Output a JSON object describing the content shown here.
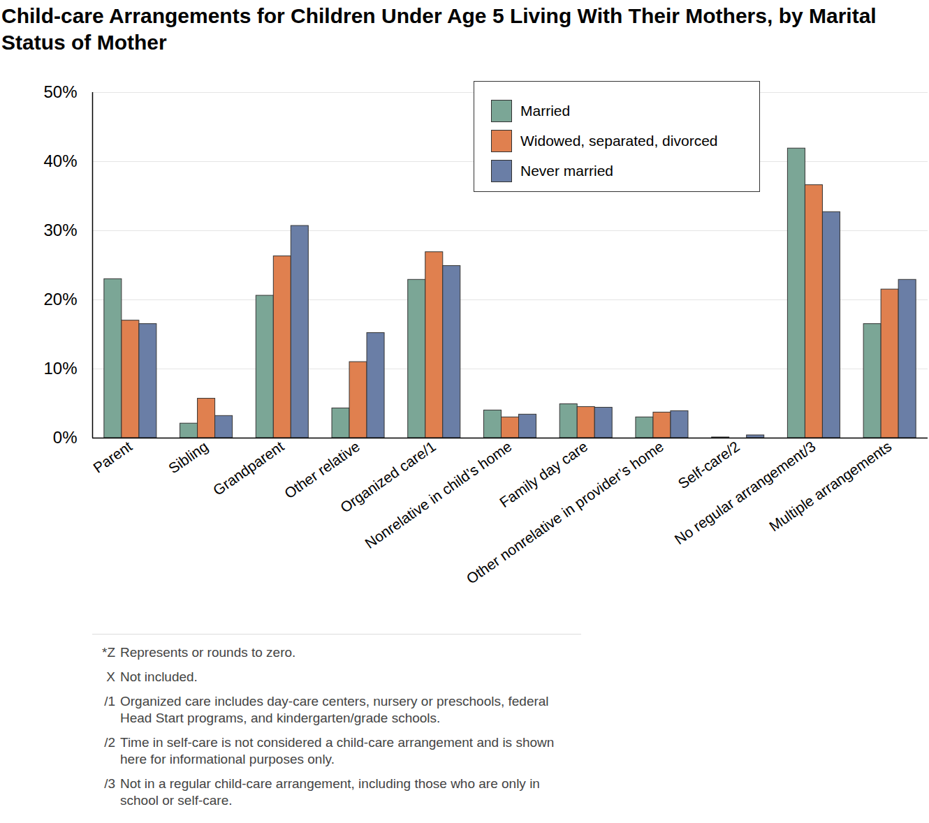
{
  "chart_data": {
    "type": "bar",
    "title": "Child-care Arrangements for Children Under Age 5 Living With Their Mothers, by Marital Status of Mother",
    "categories": [
      "Parent",
      "Sibling",
      "Grandparent",
      "Other relative",
      "Organized care/1",
      "Nonrelative in child’s home",
      "Family day care",
      "Other nonrelative in provider’s home",
      "Self-care/2",
      "No regular arrangement/3",
      "Multiple arrangements"
    ],
    "series": [
      {
        "name": "Married",
        "color": "#7ba696",
        "values": [
          23.0,
          2.1,
          20.6,
          4.3,
          22.9,
          4.0,
          4.9,
          3.0,
          0.1,
          41.9,
          16.5
        ]
      },
      {
        "name": "Widowed, separated, divorced",
        "color": "#e0804f",
        "values": [
          17.0,
          5.7,
          26.3,
          11.0,
          26.9,
          3.0,
          4.5,
          3.7,
          0,
          36.6,
          21.5
        ]
      },
      {
        "name": "Never married",
        "color": "#6a7ea6",
        "values": [
          16.5,
          3.2,
          30.7,
          15.2,
          24.9,
          3.4,
          4.4,
          3.9,
          0.4,
          32.7,
          22.9
        ]
      }
    ],
    "ylim": [
      0,
      50
    ],
    "yticks": [
      {
        "value": 0,
        "label": "0%"
      },
      {
        "value": 10,
        "label": "10%"
      },
      {
        "value": 20,
        "label": "20%"
      },
      {
        "value": 30,
        "label": "30%"
      },
      {
        "value": 40,
        "label": "40%"
      },
      {
        "value": 50,
        "label": "50%"
      }
    ],
    "grid": true,
    "legend": "top-right",
    "notes": [
      [
        "*Z",
        "Represents or rounds to zero."
      ],
      [
        "X",
        "Not included."
      ],
      [
        "/1",
        "Organized care includes day-care centers, nursery or preschools, federal Head Start programs, and kindergarten/grade schools."
      ],
      [
        "/2",
        "Time in self-care is not considered a child-care arrangement and is shown here for informational purposes only."
      ],
      [
        "/3",
        "Not in a regular child-care arrangement, including those who are only in school or self-care."
      ]
    ]
  }
}
